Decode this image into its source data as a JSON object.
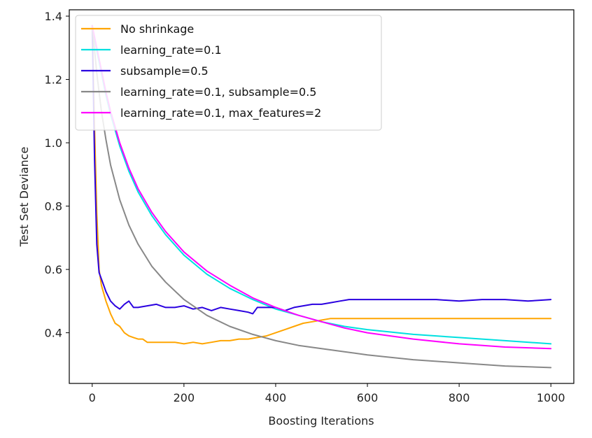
{
  "chart_data": {
    "type": "line",
    "title": "",
    "xlabel": "Boosting Iterations",
    "ylabel": "Test Set Deviance",
    "xlim": [
      -50,
      1050
    ],
    "ylim": [
      0.24,
      1.42
    ],
    "x_ticks": [
      0,
      200,
      400,
      600,
      800,
      1000
    ],
    "x_tick_labels": [
      "0",
      "200",
      "400",
      "600",
      "800",
      "1000"
    ],
    "y_ticks": [
      0.4,
      0.6,
      0.8,
      1.0,
      1.2,
      1.4
    ],
    "y_tick_labels": [
      "0.4",
      "0.6",
      "0.8",
      "1.0",
      "1.2",
      "1.4"
    ],
    "grid": false,
    "legend_position": "top-left",
    "series": [
      {
        "name": "No shrinkage",
        "color": "#ffa500",
        "x": [
          0,
          5,
          10,
          15,
          20,
          30,
          40,
          50,
          60,
          70,
          80,
          90,
          100,
          110,
          120,
          140,
          160,
          180,
          200,
          220,
          240,
          260,
          280,
          300,
          320,
          340,
          360,
          380,
          400,
          420,
          440,
          460,
          480,
          500,
          520,
          540,
          600,
          700,
          800,
          900,
          1000
        ],
        "y": [
          1.37,
          1.05,
          0.78,
          0.6,
          0.55,
          0.5,
          0.46,
          0.43,
          0.42,
          0.4,
          0.39,
          0.385,
          0.38,
          0.38,
          0.37,
          0.37,
          0.37,
          0.37,
          0.365,
          0.37,
          0.365,
          0.37,
          0.375,
          0.375,
          0.38,
          0.38,
          0.385,
          0.39,
          0.4,
          0.41,
          0.42,
          0.43,
          0.435,
          0.44,
          0.445,
          0.445,
          0.445,
          0.445,
          0.445,
          0.445,
          0.445
        ]
      },
      {
        "name": "learning_rate=0.1",
        "color": "#00e0e0",
        "x": [
          0,
          10,
          20,
          30,
          40,
          60,
          80,
          100,
          130,
          160,
          200,
          250,
          300,
          350,
          400,
          450,
          500,
          550,
          600,
          700,
          800,
          900,
          1000
        ],
        "y": [
          1.37,
          1.29,
          1.22,
          1.15,
          1.09,
          0.99,
          0.91,
          0.845,
          0.77,
          0.71,
          0.645,
          0.585,
          0.54,
          0.505,
          0.475,
          0.455,
          0.435,
          0.42,
          0.41,
          0.395,
          0.385,
          0.375,
          0.365
        ]
      },
      {
        "name": "subsample=0.5",
        "color": "#2a00e0",
        "x": [
          0,
          5,
          10,
          15,
          20,
          25,
          30,
          40,
          50,
          60,
          70,
          80,
          90,
          100,
          120,
          140,
          160,
          180,
          200,
          220,
          240,
          260,
          280,
          300,
          320,
          340,
          350,
          360,
          380,
          400,
          420,
          440,
          460,
          480,
          500,
          520,
          540,
          560,
          600,
          650,
          700,
          750,
          800,
          850,
          900,
          950,
          1000
        ],
        "y": [
          1.37,
          0.95,
          0.68,
          0.59,
          0.57,
          0.55,
          0.53,
          0.5,
          0.485,
          0.475,
          0.49,
          0.5,
          0.48,
          0.48,
          0.485,
          0.49,
          0.48,
          0.48,
          0.485,
          0.475,
          0.48,
          0.47,
          0.48,
          0.475,
          0.47,
          0.465,
          0.46,
          0.48,
          0.48,
          0.48,
          0.47,
          0.48,
          0.485,
          0.49,
          0.49,
          0.495,
          0.5,
          0.505,
          0.505,
          0.505,
          0.505,
          0.505,
          0.5,
          0.505,
          0.505,
          0.5,
          0.505
        ]
      },
      {
        "name": "learning_rate=0.1, subsample=0.5",
        "color": "#888888",
        "x": [
          0,
          10,
          20,
          30,
          40,
          60,
          80,
          100,
          130,
          160,
          200,
          250,
          300,
          350,
          400,
          450,
          500,
          550,
          600,
          700,
          800,
          900,
          1000
        ],
        "y": [
          1.37,
          1.22,
          1.1,
          1.01,
          0.93,
          0.82,
          0.74,
          0.68,
          0.61,
          0.56,
          0.505,
          0.455,
          0.42,
          0.395,
          0.375,
          0.36,
          0.35,
          0.34,
          0.33,
          0.315,
          0.305,
          0.295,
          0.29
        ]
      },
      {
        "name": "learning_rate=0.1, max_features=2",
        "color": "#ff00ff",
        "x": [
          0,
          10,
          20,
          30,
          40,
          60,
          80,
          100,
          130,
          160,
          200,
          250,
          300,
          350,
          400,
          450,
          500,
          550,
          600,
          700,
          800,
          900,
          1000
        ],
        "y": [
          1.37,
          1.3,
          1.23,
          1.16,
          1.1,
          1.0,
          0.92,
          0.855,
          0.78,
          0.72,
          0.655,
          0.595,
          0.55,
          0.51,
          0.48,
          0.455,
          0.435,
          0.415,
          0.4,
          0.38,
          0.365,
          0.355,
          0.35
        ]
      }
    ]
  }
}
